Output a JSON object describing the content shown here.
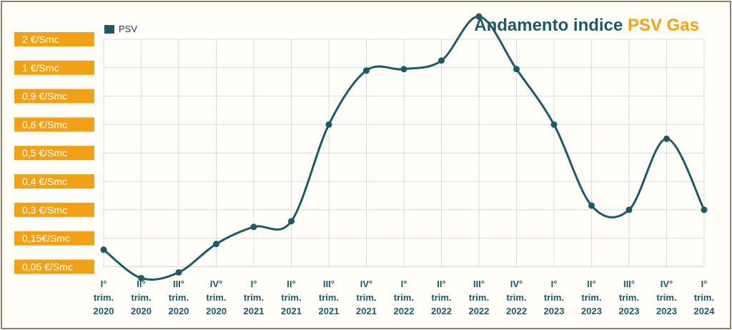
{
  "title": {
    "main": "Andamento indice",
    "accent": "PSV Gas"
  },
  "colors": {
    "line": "#1e5a66",
    "label_bg": "#f2a116",
    "grid": "#cfdde0",
    "axis_text": "#1e5a66",
    "title": "#1e5a66",
    "title_accent": "#f2a116"
  },
  "chart_data": {
    "type": "line",
    "legend_position": "top-left",
    "grid": true,
    "y_labels": [
      "2 €/Smc",
      "1 €/Smc",
      "0,9 €/Smc",
      "0,6 €/Smc",
      "0,5 €/Smc",
      "0,4 €/Smc",
      "0,3 €/Smc",
      "0,15€/Smc",
      "0,05 €/Smc"
    ],
    "categories": [
      [
        "I°",
        "trim.",
        "2020"
      ],
      [
        "II°",
        "trim.",
        "2020"
      ],
      [
        "III°",
        "trim.",
        "2020"
      ],
      [
        "IV°",
        "trim.",
        "2020"
      ],
      [
        "I°",
        "trim.",
        "2021"
      ],
      [
        "II°",
        "trim.",
        "2021"
      ],
      [
        "III°",
        "trim.",
        "2021"
      ],
      [
        "IV°",
        "trim.",
        "2021"
      ],
      [
        "I°",
        "trim.",
        "2022"
      ],
      [
        "II°",
        "trim.",
        "2022"
      ],
      [
        "III°",
        "trim.",
        "2022"
      ],
      [
        "IV°",
        "trim.",
        "2022"
      ],
      [
        "I°",
        "trim.",
        "2023"
      ],
      [
        "II°",
        "trim.",
        "2023"
      ],
      [
        "III°",
        "trim.",
        "2023"
      ],
      [
        "IV°",
        "trim.",
        "2023"
      ],
      [
        "I°",
        "trim.",
        "2024"
      ]
    ],
    "series": [
      {
        "name": "PSV",
        "level_index": [
          7.4,
          8.4,
          8.2,
          7.2,
          6.6,
          6.4,
          3.0,
          1.1,
          1.05,
          0.75,
          -0.8,
          1.05,
          3.0,
          5.85,
          6.0,
          3.5,
          6.0
        ]
      }
    ]
  }
}
